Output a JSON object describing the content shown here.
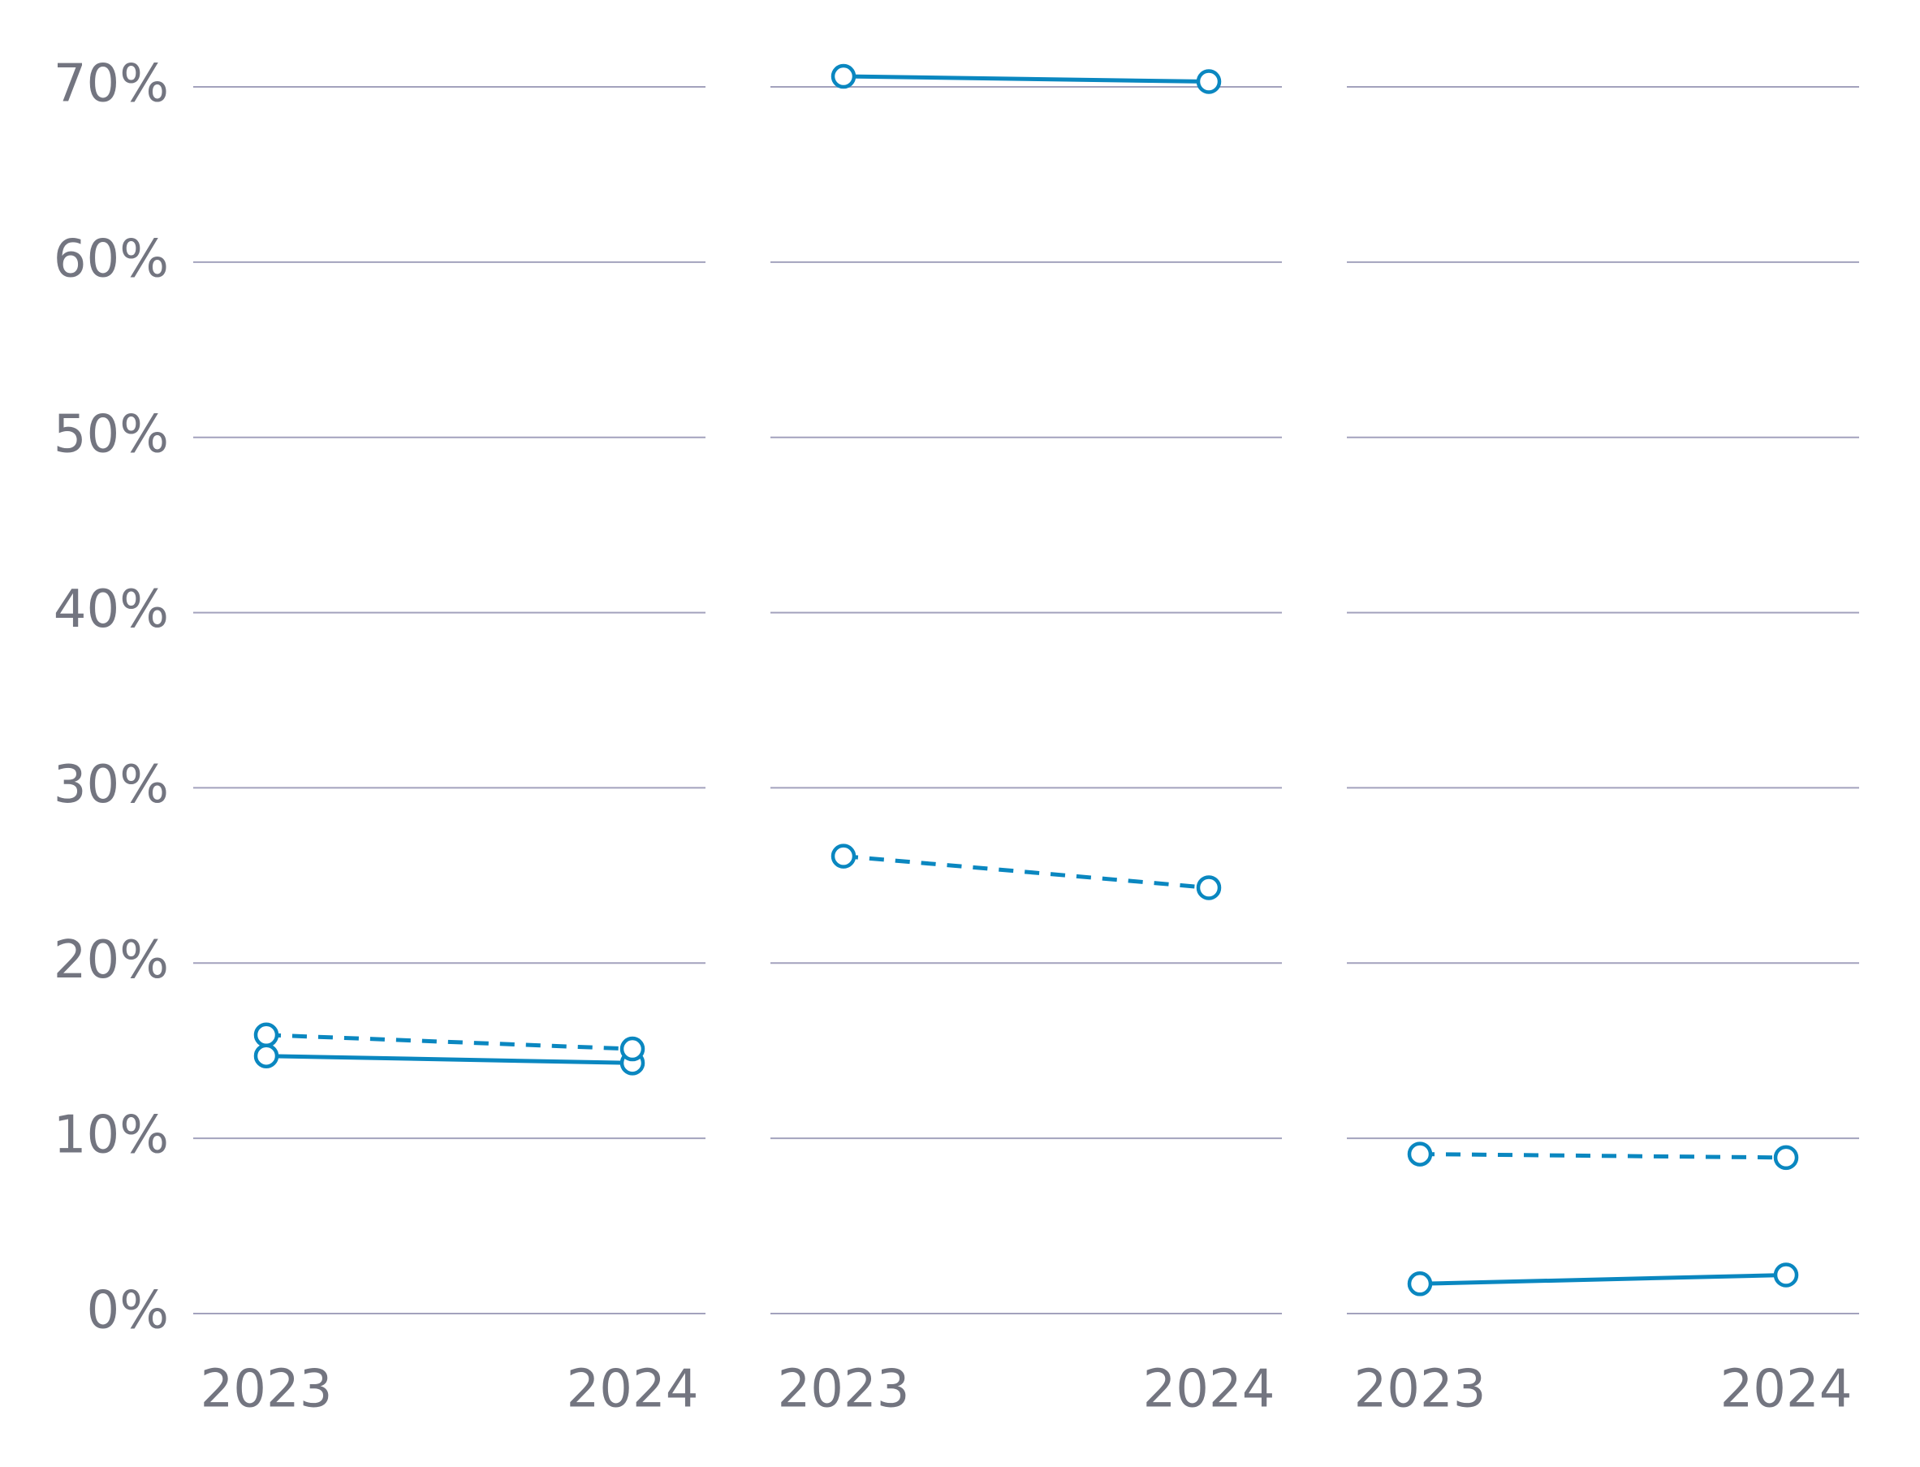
{
  "chart_data": [
    {
      "type": "line",
      "categories": [
        "2023",
        "2024"
      ],
      "ylim": [
        0,
        70
      ],
      "yticks": [
        {
          "value": 0,
          "label": "0%"
        },
        {
          "value": 10,
          "label": "10%"
        },
        {
          "value": 20,
          "label": "20%"
        },
        {
          "value": 30,
          "label": "30%"
        },
        {
          "value": 40,
          "label": "40%"
        },
        {
          "value": 50,
          "label": "50%"
        },
        {
          "value": 60,
          "label": "60%"
        },
        {
          "value": 70,
          "label": "70%"
        }
      ],
      "grid": true,
      "series": [
        {
          "color": "#0a87c0",
          "line_style": "solid",
          "values": [
            14.7,
            14.3
          ]
        },
        {
          "color": "#0a87c0",
          "line_style": "dashed",
          "values": [
            15.9,
            15.1
          ]
        }
      ]
    },
    {
      "type": "line",
      "categories": [
        "2023",
        "2024"
      ],
      "ylim": [
        0,
        70
      ],
      "yticks": [
        0,
        10,
        20,
        30,
        40,
        50,
        60,
        70
      ],
      "grid": true,
      "series": [
        {
          "color": "#0a87c0",
          "line_style": "solid",
          "values": [
            70.6,
            70.3
          ]
        },
        {
          "color": "#0a87c0",
          "line_style": "dashed",
          "values": [
            26.1,
            24.3
          ]
        }
      ]
    },
    {
      "type": "line",
      "categories": [
        "2023",
        "2024"
      ],
      "ylim": [
        0,
        70
      ],
      "yticks": [
        0,
        10,
        20,
        30,
        40,
        50,
        60,
        70
      ],
      "grid": true,
      "series": [
        {
          "color": "#0a87c0",
          "line_style": "solid",
          "values": [
            1.7,
            2.2
          ]
        },
        {
          "color": "#0a87c0",
          "line_style": "dashed",
          "values": [
            9.1,
            8.9
          ]
        }
      ]
    }
  ]
}
